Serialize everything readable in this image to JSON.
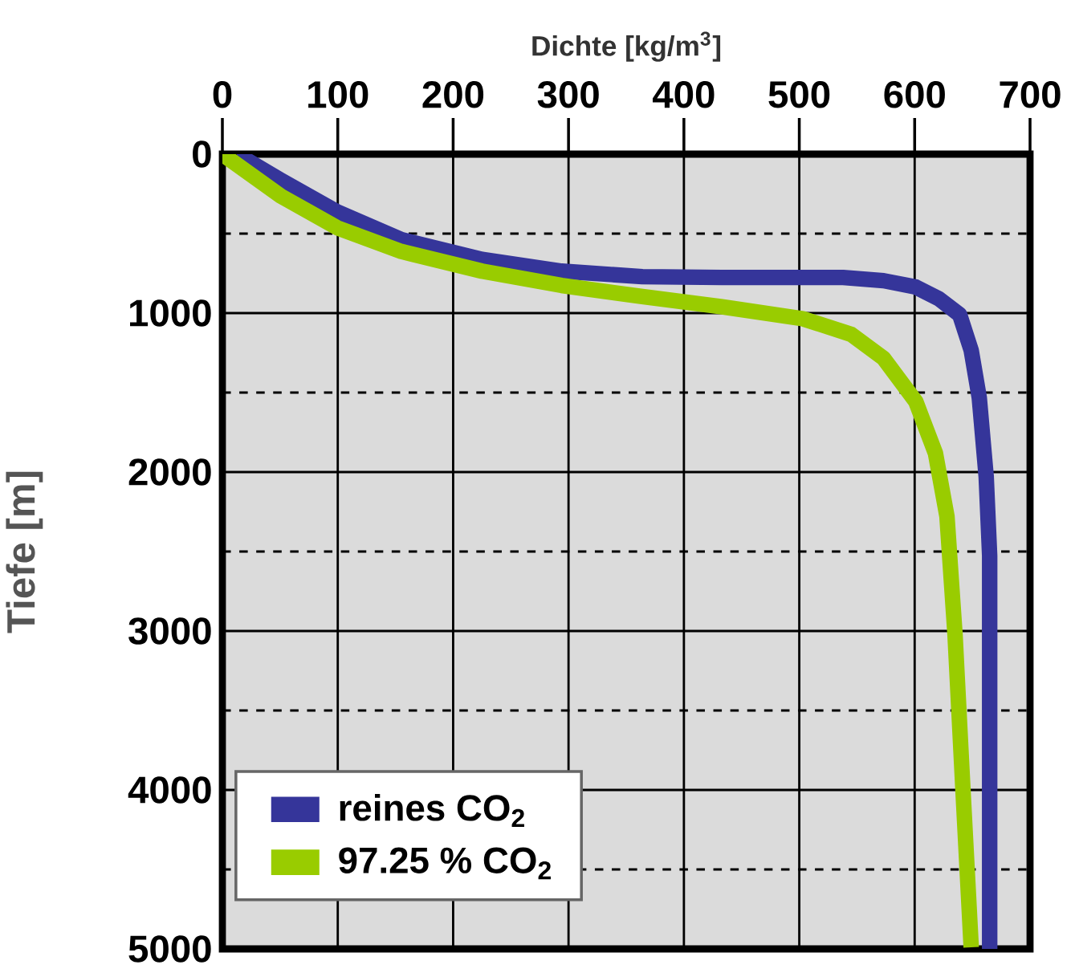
{
  "chart_data": {
    "type": "line",
    "xlabel": "Dichte [kg/m$^{3}$]",
    "ylabel": "Tiefe [m]",
    "xlim": [
      0,
      700
    ],
    "xticks": [
      0,
      100,
      200,
      300,
      400,
      500,
      600,
      700
    ],
    "ylim": [
      5000,
      0
    ],
    "yticks": [
      0,
      {
        "value": 500,
        "label": null
      },
      1000,
      {
        "value": 1500,
        "label": null
      },
      2000,
      {
        "value": 2500,
        "label": null
      },
      3000,
      {
        "value": 3500,
        "label": null
      },
      4000,
      {
        "value": 4500,
        "label": null
      },
      5000
    ],
    "grid": true,
    "legend": "bottom left",
    "line_style": "solid",
    "marker": "none",
    "series": [
      {
        "name": "reines CO$_{2}$",
        "color": "#35359a",
        "x": [
          12.5,
          50.8,
          99.5,
          155,
          225,
          294,
          364,
          433,
          503,
          538,
          573,
          601,
          621,
          639,
          649,
          656,
          662,
          665,
          665
        ],
        "values": [
          0,
          164,
          363,
          537,
          662,
          736,
          771,
          776,
          776,
          776,
          796,
          836,
          910,
          1010,
          1234,
          1532,
          2030,
          2527,
          5000
        ]
      },
      {
        "name": "97.25 % CO$_{2}$",
        "color": "#99cc00",
        "x": [
          0,
          50.8,
          99.5,
          155,
          225,
          294,
          364,
          433,
          503,
          545,
          573,
          601,
          618,
          628,
          635,
          642,
          649
        ],
        "values": [
          0,
          264,
          463,
          612,
          736,
          826,
          896,
          960,
          1035,
          1134,
          1284,
          1557,
          1881,
          2279,
          3025,
          4020,
          4990
        ]
      }
    ]
  }
}
